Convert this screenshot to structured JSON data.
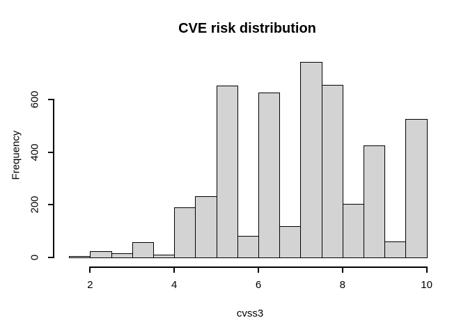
{
  "figure": {
    "background": "#ffffff",
    "text_color": "#000000"
  },
  "chart_data": {
    "type": "bar",
    "subtype": "histogram",
    "title": "CVE risk distribution",
    "xlabel": "cvss3",
    "ylabel": "Frequency",
    "bin_start": 1.5,
    "bin_width": 0.5,
    "bin_edges": [
      1.5,
      2,
      2.5,
      3,
      3.5,
      4,
      4.5,
      5,
      5.5,
      6,
      6.5,
      7,
      7.5,
      8,
      8.5,
      9,
      9.5,
      10
    ],
    "counts": [
      3,
      22,
      12,
      54,
      8,
      188,
      229,
      651,
      78,
      625,
      116,
      741,
      654,
      201,
      423,
      57,
      525
    ],
    "x_ticks": [
      2,
      4,
      6,
      8,
      10
    ],
    "y_ticks": [
      0,
      200,
      400,
      600
    ],
    "xlim": [
      1.5,
      10
    ],
    "ylim": [
      0,
      741
    ],
    "grid": false,
    "legend": false,
    "bar_fill": "#d3d3d3",
    "bar_border": "#000000",
    "axis_color": "#000000"
  }
}
